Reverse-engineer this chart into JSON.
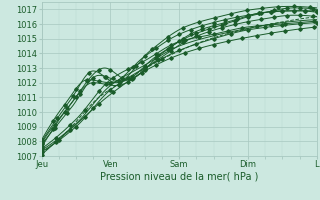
{
  "title": "",
  "xlabel": "Pression niveau de la mer( hPa )",
  "ylabel": "",
  "ylim": [
    1007,
    1017.5
  ],
  "xlim": [
    0,
    96
  ],
  "bg_color": "#cce8e0",
  "grid_color_major": "#a8c8c0",
  "grid_color_minor": "#b8d8d0",
  "line_color": "#1a5c2a",
  "tick_label_color": "#1a5c2a",
  "xticks": [
    0,
    24,
    48,
    72,
    96
  ],
  "xtick_labels": [
    "Jeu",
    "Ven",
    "Sam",
    "Dim",
    "L"
  ],
  "yticks": [
    1007,
    1008,
    1009,
    1010,
    1011,
    1012,
    1013,
    1014,
    1015,
    1016,
    1017
  ],
  "figsize": [
    3.2,
    2.0
  ],
  "dpi": 100
}
